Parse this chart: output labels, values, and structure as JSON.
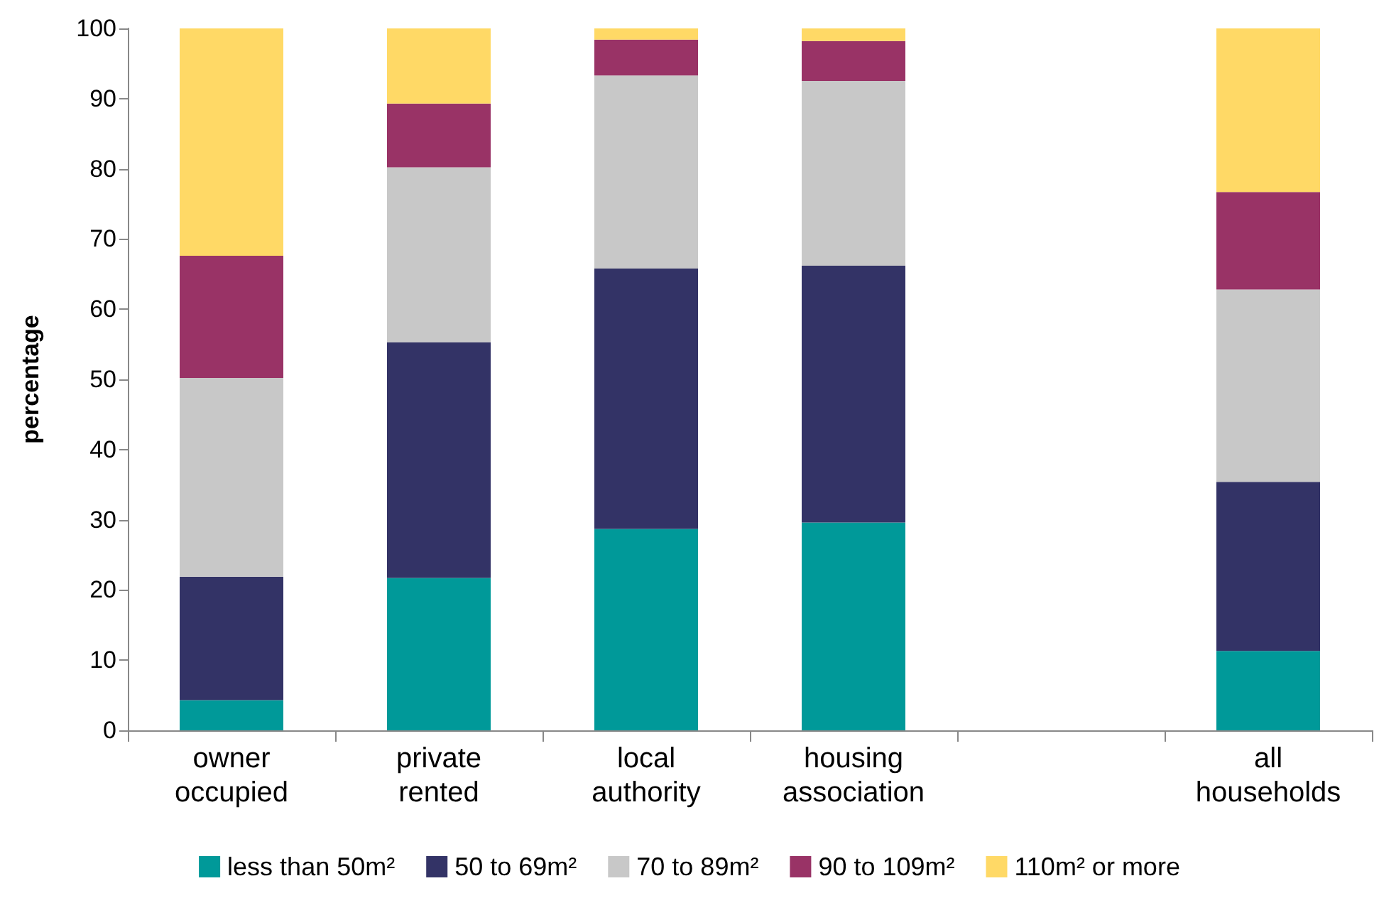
{
  "chart_data": {
    "type": "bar",
    "stacked": true,
    "ylabel": "percentage",
    "categories": [
      "owner\noccupied",
      "private\nrented",
      "local\nauthority",
      "housing\nassociation",
      null,
      "all\nhouseholds"
    ],
    "series": [
      {
        "name": "less than 50m²",
        "color": "#009999",
        "values": [
          4.3,
          21.7,
          28.7,
          29.6,
          null,
          11.3
        ]
      },
      {
        "name": "50 to 69m²",
        "color": "#333366",
        "values": [
          17.6,
          33.6,
          37.1,
          36.6,
          null,
          24.1
        ]
      },
      {
        "name": "70 to 89m²",
        "color": "#c8c8c8",
        "values": [
          28.3,
          24.9,
          27.5,
          26.3,
          null,
          27.4
        ]
      },
      {
        "name": "90 to 109m²",
        "color": "#993366",
        "values": [
          17.4,
          9.1,
          5.1,
          5.7,
          null,
          13.9
        ]
      },
      {
        "name": "110m² or more",
        "color": "#ffd966",
        "values": [
          32.4,
          10.7,
          1.6,
          1.8,
          null,
          23.3
        ]
      }
    ],
    "ylim": [
      0,
      100
    ],
    "yticks": [
      0,
      10,
      20,
      30,
      40,
      50,
      60,
      70,
      80,
      90,
      100
    ],
    "grid": false,
    "legend": "bottom"
  }
}
